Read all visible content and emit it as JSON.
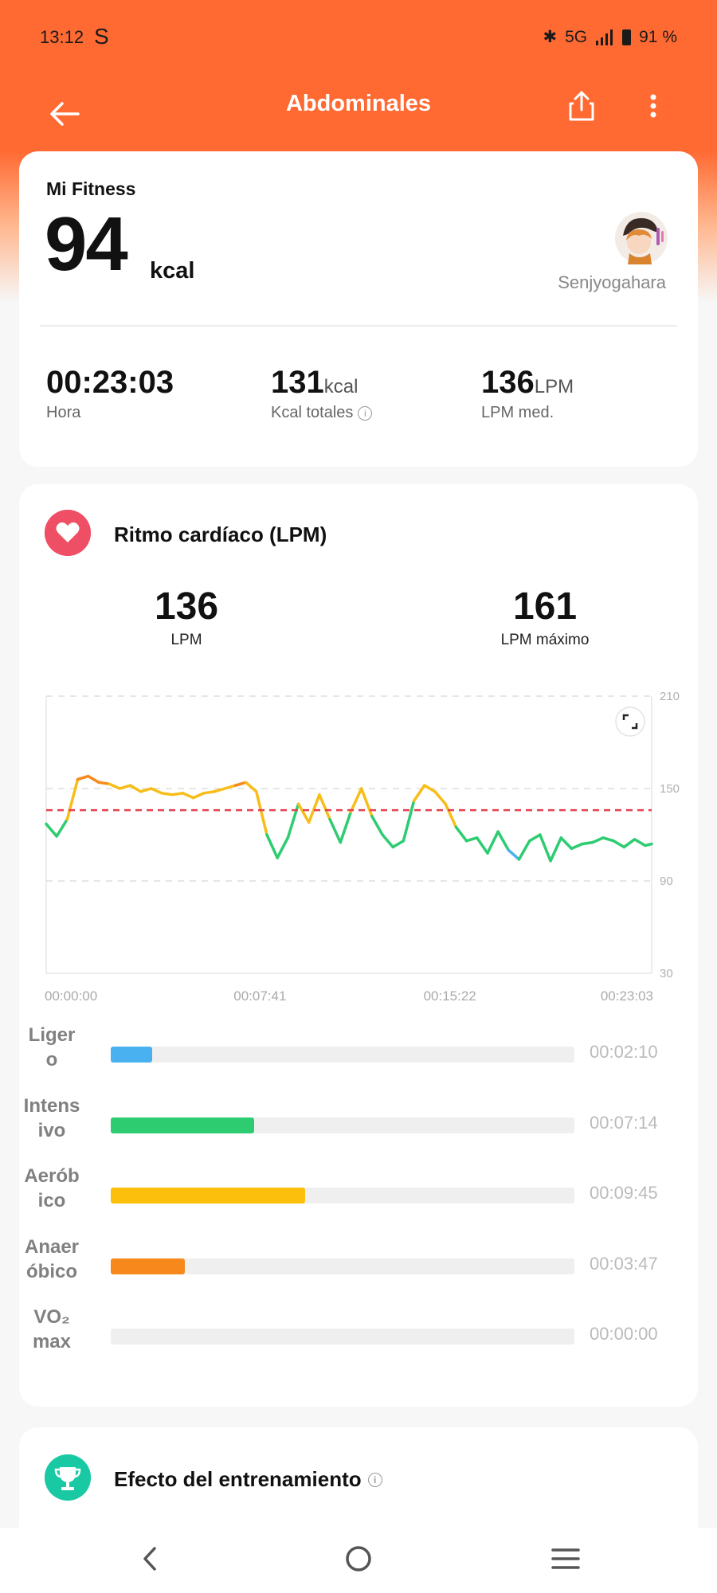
{
  "status_bar": {
    "time": "13:12",
    "carrier_glyph": "S",
    "network": "5G",
    "battery": "91 %"
  },
  "header": {
    "title": "Abdominales"
  },
  "summary": {
    "source": "Mi Fitness",
    "kcal_value": "94",
    "kcal_unit": "kcal",
    "username": "Senjyogahara",
    "stats": [
      {
        "value": "00:23:03",
        "unit": "",
        "label": "Hora"
      },
      {
        "value": "131",
        "unit": "kcal",
        "label": "Kcal totales"
      },
      {
        "value": "136",
        "unit": "LPM",
        "label": "LPM med."
      }
    ]
  },
  "heart_rate": {
    "title": "Ritmo cardíaco (LPM)",
    "avg_value": "136",
    "avg_label": "LPM",
    "max_value": "161",
    "max_label": "LPM máximo"
  },
  "chart_data": {
    "type": "line",
    "y_ticks": [
      "210",
      "150",
      "90",
      "30"
    ],
    "x_ticks": [
      "00:00:00",
      "00:07:41",
      "00:15:22",
      "00:23:03"
    ],
    "ylim": [
      30,
      210
    ],
    "xlim": [
      0,
      1383
    ],
    "average_line": 136,
    "grid": true,
    "zone_colors": {
      "light": "#4ab1f0",
      "intense": "#2ecc71",
      "aerobic": "#f7bd18",
      "anaerobic": "#f7891c"
    },
    "x": [
      0,
      24,
      48,
      72,
      96,
      120,
      144,
      168,
      192,
      216,
      240,
      264,
      288,
      312,
      336,
      360,
      384,
      408,
      432,
      456,
      480,
      504,
      528,
      552,
      576,
      600,
      624,
      648,
      672,
      696,
      720,
      744,
      768,
      792,
      816,
      840,
      864,
      888,
      912,
      936,
      960,
      984,
      1008,
      1032,
      1056,
      1080,
      1104,
      1128,
      1152,
      1176,
      1200,
      1224,
      1248,
      1272,
      1296,
      1320,
      1344,
      1368,
      1383
    ],
    "values": [
      127,
      119,
      130,
      156,
      158,
      154,
      153,
      150,
      152,
      148,
      150,
      147,
      146,
      147,
      144,
      147,
      148,
      150,
      152,
      154,
      148,
      120,
      105,
      118,
      140,
      128,
      146,
      130,
      115,
      135,
      150,
      132,
      120,
      112,
      116,
      142,
      152,
      148,
      140,
      125,
      116,
      118,
      108,
      122,
      110,
      104,
      116,
      120,
      103,
      118,
      111,
      114,
      115,
      118,
      116,
      112,
      117,
      113,
      114
    ]
  },
  "zones": [
    {
      "label": "Liger\no",
      "time": "00:02:10",
      "fraction": 0.09,
      "color": "#4ab1f0"
    },
    {
      "label": "Intens\nivo",
      "time": "00:07:14",
      "fraction": 0.31,
      "color": "#2ecc71"
    },
    {
      "label": "Aerób\nico",
      "time": "00:09:45",
      "fraction": 0.42,
      "color": "#fbbf0c"
    },
    {
      "label": "Anaer\nóbico",
      "time": "00:03:47",
      "fraction": 0.16,
      "color": "#f7891c"
    },
    {
      "label": "VO₂\nmax",
      "time": "00:00:00",
      "fraction": 0.0,
      "color": "#cccccc"
    }
  ],
  "training_effect": {
    "title": "Efecto del entrenamiento"
  },
  "icons": {
    "back": "arrow-left-icon",
    "share": "share-icon",
    "more": "more-vertical-icon",
    "heart": "heart-icon",
    "trophy": "trophy-icon",
    "expand": "expand-icon",
    "info": "info-icon"
  }
}
